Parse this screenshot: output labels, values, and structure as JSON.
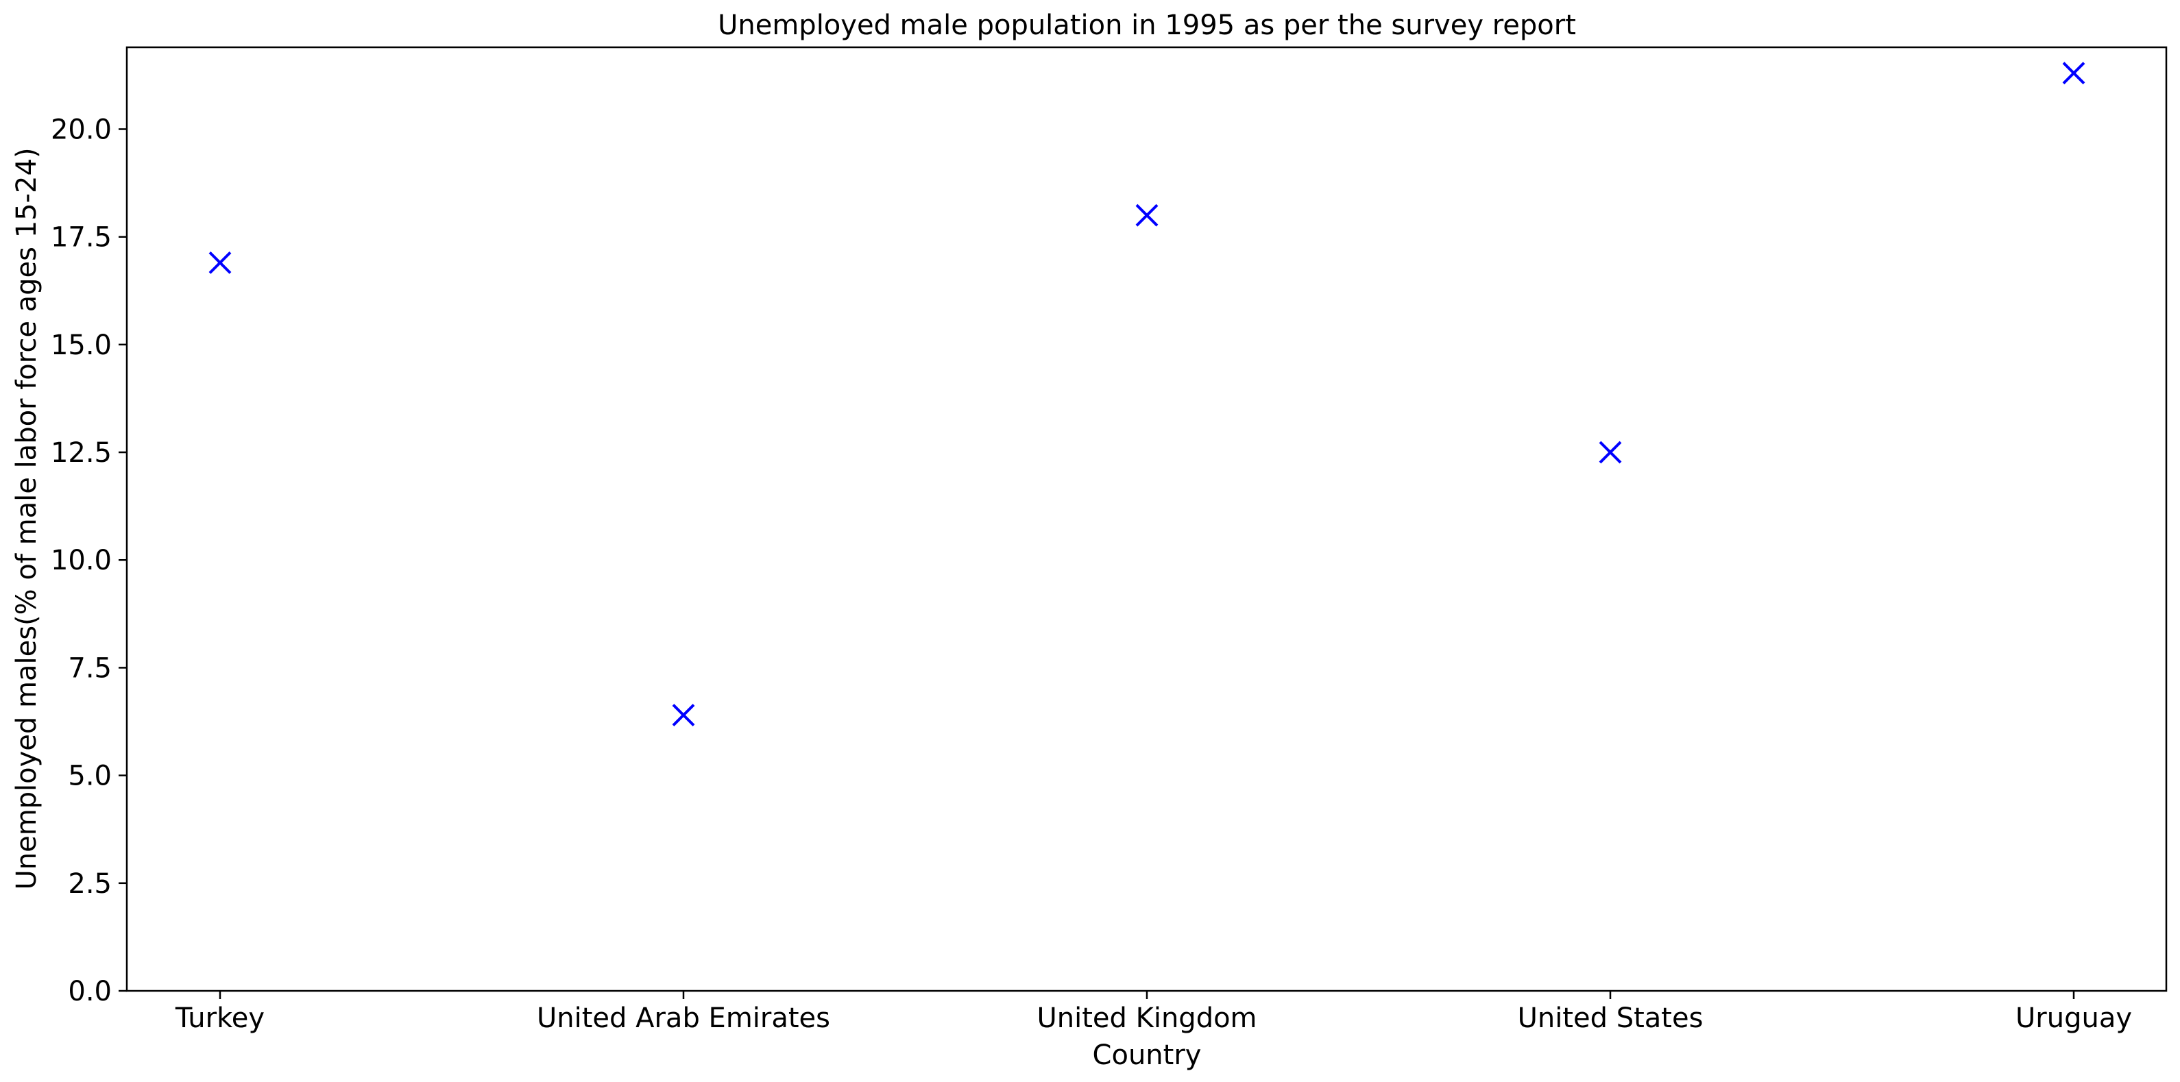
{
  "chart_data": {
    "type": "scatter",
    "title": "Unemployed male population in 1995 as per the survey report",
    "xlabel": "Country",
    "ylabel": "Unemployed males(% of male labor force ages 15-24)",
    "categories": [
      "Turkey",
      "United Arab Emirates",
      "United Kingdom",
      "United States",
      "Uruguay"
    ],
    "values": [
      16.9,
      6.4,
      18.0,
      12.5,
      21.3
    ],
    "ylim": [
      0,
      21.9
    ],
    "yticks": [
      "0.0",
      "2.5",
      "5.0",
      "7.5",
      "10.0",
      "12.5",
      "15.0",
      "17.5",
      "20.0"
    ],
    "marker": "x",
    "marker_color": "#0000ff",
    "grid": false
  }
}
